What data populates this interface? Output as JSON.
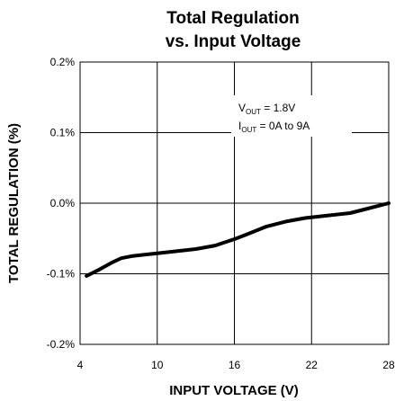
{
  "chart_data": {
    "type": "line",
    "title": [
      "Total Regulation",
      "vs. Input Voltage"
    ],
    "xlabel": "INPUT VOLTAGE (V)",
    "ylabel": "TOTAL REGULATION (%)",
    "xlim": [
      4,
      28
    ],
    "ylim": [
      -0.2,
      0.2
    ],
    "x_ticks": [
      4,
      10,
      16,
      22,
      28
    ],
    "x_tick_labels": [
      "4",
      "10",
      "16",
      "22",
      "28"
    ],
    "y_ticks": [
      0.2,
      0.1,
      0.0,
      -0.1,
      -0.2
    ],
    "y_tick_labels": [
      "0.2%",
      "0.1%",
      "0.0%",
      "-0.1%",
      "-0.2%"
    ],
    "grid": true,
    "annotation": {
      "line1": {
        "prefix": "V",
        "sub": "OUT",
        "suffix": " = 1.8V"
      },
      "line2": {
        "prefix": "I",
        "sub": "OUT",
        "suffix": " = 0A to 9A"
      }
    },
    "series": [
      {
        "x": [
          4.5,
          5.5,
          6.5,
          7.2,
          8.0,
          9.0,
          10.0,
          11.5,
          13.0,
          14.5,
          16.0,
          17.0,
          18.5,
          20.0,
          21.5,
          23.0,
          25.0,
          26.5,
          28.0
        ],
        "y": [
          -0.103,
          -0.094,
          -0.084,
          -0.078,
          -0.075,
          -0.073,
          -0.071,
          -0.068,
          -0.065,
          -0.06,
          -0.051,
          -0.044,
          -0.033,
          -0.026,
          -0.021,
          -0.018,
          -0.014,
          -0.007,
          0.0
        ]
      }
    ],
    "colors": {
      "line": "#000000",
      "grid": "#000000",
      "background": "#ffffff"
    }
  }
}
